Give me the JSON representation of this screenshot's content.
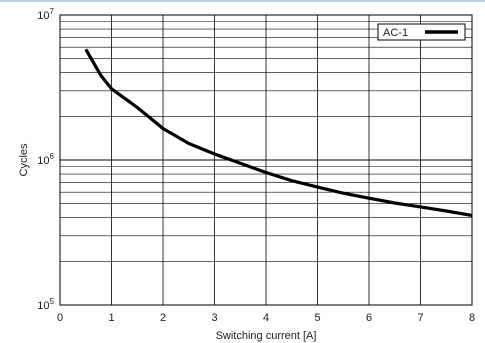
{
  "chart_data": {
    "type": "line",
    "xlabel": "Switching current [A]",
    "ylabel": "Cycles",
    "xlim": [
      0,
      8
    ],
    "ylim": [
      100000,
      10000000
    ],
    "y_scale": "log",
    "grid": true,
    "legend_position": "top-right",
    "x_ticks": [
      "0",
      "1",
      "2",
      "3",
      "4",
      "5",
      "6",
      "7",
      "8"
    ],
    "y_ticks": [
      {
        "base": "10",
        "exp": "5"
      },
      {
        "base": "10",
        "exp": "6"
      },
      {
        "base": "10",
        "exp": "7"
      }
    ],
    "series": [
      {
        "name": "AC-1",
        "color": "#000000",
        "x": [
          0.5,
          0.8,
          1.0,
          1.5,
          2.0,
          2.5,
          3.0,
          3.5,
          4.0,
          4.5,
          5.0,
          5.5,
          6.0,
          6.5,
          7.0,
          7.5,
          8.0
        ],
        "y": [
          5800000,
          3800000,
          3100000,
          2300000,
          1650000,
          1300000,
          1100000,
          950000,
          820000,
          720000,
          650000,
          590000,
          545000,
          505000,
          475000,
          445000,
          415000
        ]
      }
    ]
  }
}
